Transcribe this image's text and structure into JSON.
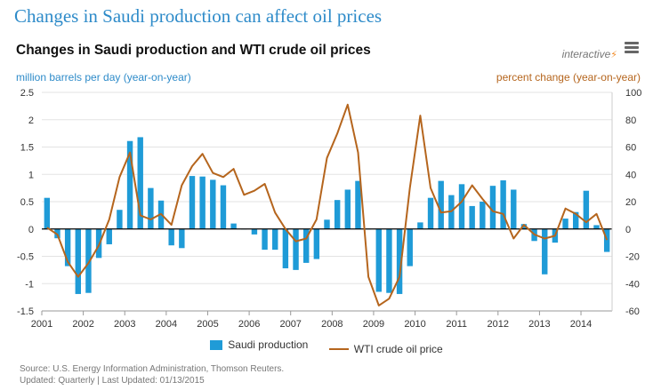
{
  "page": {
    "title": "Changes in Saudi production can affect oil prices"
  },
  "header": {
    "chart_title": "Changes in Saudi production and WTI crude oil prices",
    "interactive_label": "interactive",
    "interactive_glyph": "⚡",
    "menu_icon": "hamburger-menu-icon"
  },
  "axes": {
    "left_label": "million barrels per day (year-on-year)",
    "right_label": "percent change (year-on-year)"
  },
  "legend": {
    "bar_label": "Saudi production",
    "line_label": "WTI crude oil price"
  },
  "footer": {
    "source": "Source: U.S. Energy Information Administration, Thomson Reuters.",
    "updated": "Updated: Quarterly | Last Updated: 01/13/2015"
  },
  "colors": {
    "bars": "#1f9bd7",
    "line": "#b5651d",
    "title": "#2e8bc9",
    "grid": "#e3e3e3"
  },
  "chart_data": {
    "type": "bar+line",
    "title": "Changes in Saudi production and WTI crude oil prices",
    "x_ticks": [
      "2001",
      "2002",
      "2003",
      "2004",
      "2005",
      "2006",
      "2007",
      "2008",
      "2009",
      "2010",
      "2011",
      "2012",
      "2013",
      "2014"
    ],
    "x_start_year": 2001,
    "x_range": [
      2001,
      2014.75
    ],
    "y_left": {
      "label": "million barrels per day (year-on-year)",
      "min": -1.5,
      "max": 2.5,
      "ticks": [
        -1.5,
        -1,
        -0.5,
        0,
        0.5,
        1,
        1.5,
        2,
        2.5
      ]
    },
    "y_right": {
      "label": "percent change (year-on-year)",
      "min": -60,
      "max": 100,
      "ticks": [
        -60,
        -40,
        -20,
        0,
        20,
        40,
        60,
        80,
        100
      ]
    },
    "grid": true,
    "legend_position": "bottom",
    "series": [
      {
        "name": "Saudi production",
        "type": "bar",
        "axis": "left",
        "values": [
          0.57,
          -0.17,
          -0.68,
          -1.19,
          -1.17,
          -0.53,
          -0.28,
          0.35,
          1.61,
          1.68,
          0.75,
          0.52,
          -0.3,
          -0.35,
          0.97,
          0.96,
          0.9,
          0.8,
          0.1,
          0.0,
          -0.1,
          -0.38,
          -0.38,
          -0.72,
          -0.75,
          -0.62,
          -0.55,
          0.17,
          0.53,
          0.72,
          0.88,
          0.0,
          -1.15,
          -1.17,
          -1.19,
          -0.68,
          0.12,
          0.57,
          0.88,
          0.62,
          0.82,
          0.42,
          0.5,
          0.79,
          0.89,
          0.72,
          0.09,
          -0.22,
          -0.83,
          -0.25,
          0.19,
          0.31,
          0.7,
          0.07,
          -0.42
        ]
      },
      {
        "name": "WTI crude oil price",
        "type": "line",
        "axis": "right",
        "values": [
          1,
          -4,
          -24,
          -35,
          -25,
          -12,
          7,
          38,
          56,
          10,
          7,
          11,
          3,
          32,
          46,
          55,
          41,
          38,
          44,
          25,
          28,
          33,
          12,
          0,
          -9,
          -7,
          7,
          52,
          70,
          91,
          56,
          -35,
          -56,
          -51,
          -35,
          30,
          83,
          30,
          12,
          13,
          20,
          32,
          22,
          13,
          11,
          -7,
          3,
          -4,
          -7,
          -5,
          15,
          11,
          5,
          11,
          -8
        ]
      }
    ]
  }
}
